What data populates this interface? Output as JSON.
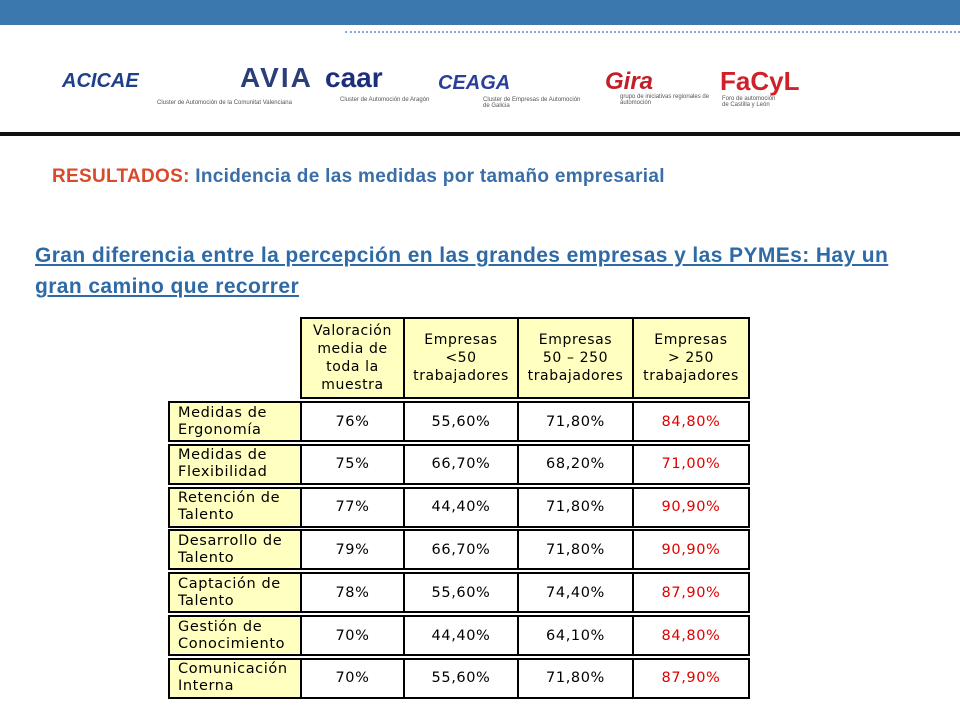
{
  "logos": [
    {
      "name": "ACICAE"
    },
    {
      "name": "AVIA",
      "caption": "Cluster de Automoción de la Comunitat Valenciana"
    },
    {
      "name": "caar",
      "caption": "Cluster de Automoción de Aragón"
    },
    {
      "name": "CEAGA",
      "caption": "Cluster de Empresas de Automoción de Galicia"
    },
    {
      "name": "Gira",
      "caption": "grupo de iniciativas regionales de automoción"
    },
    {
      "name": "FaCyL",
      "caption": "Foro de automoción de Castilla y León"
    }
  ],
  "title": {
    "label": "RESULTADOS:",
    "text": "Incidencia de las medidas por tamaño empresarial"
  },
  "heading": "Gran diferencia entre la percepción en las grandes empresas y las PYMEs: Hay un gran camino que recorrer",
  "table": {
    "columns": [
      "Valoración\nmedia de\ntoda la\nmuestra",
      "Empresas\n<50\ntrabajadores",
      "Empresas\n50 – 250\ntrabajadores",
      "Empresas\n> 250\ntrabajadores"
    ],
    "rows": [
      [
        "Medidas de Ergonomía",
        "76%",
        "55,60%",
        "71,80%",
        "84,80%"
      ],
      [
        "Medidas de Flexibilidad",
        "75%",
        "66,70%",
        "68,20%",
        "71,00%"
      ],
      [
        "Retención de Talento",
        "77%",
        "44,40%",
        "71,80%",
        "90,90%"
      ],
      [
        "Desarrollo de Talento",
        "79%",
        "66,70%",
        "71,80%",
        "90,90%"
      ],
      [
        "Captación de Talento",
        "78%",
        "55,60%",
        "74,40%",
        "87,90%"
      ],
      [
        "Gestión de Conocimiento",
        "70%",
        "44,40%",
        "64,10%",
        "84,80%"
      ],
      [
        "Comunicación Interna",
        "70%",
        "55,60%",
        "71,80%",
        "87,90%"
      ]
    ]
  }
}
